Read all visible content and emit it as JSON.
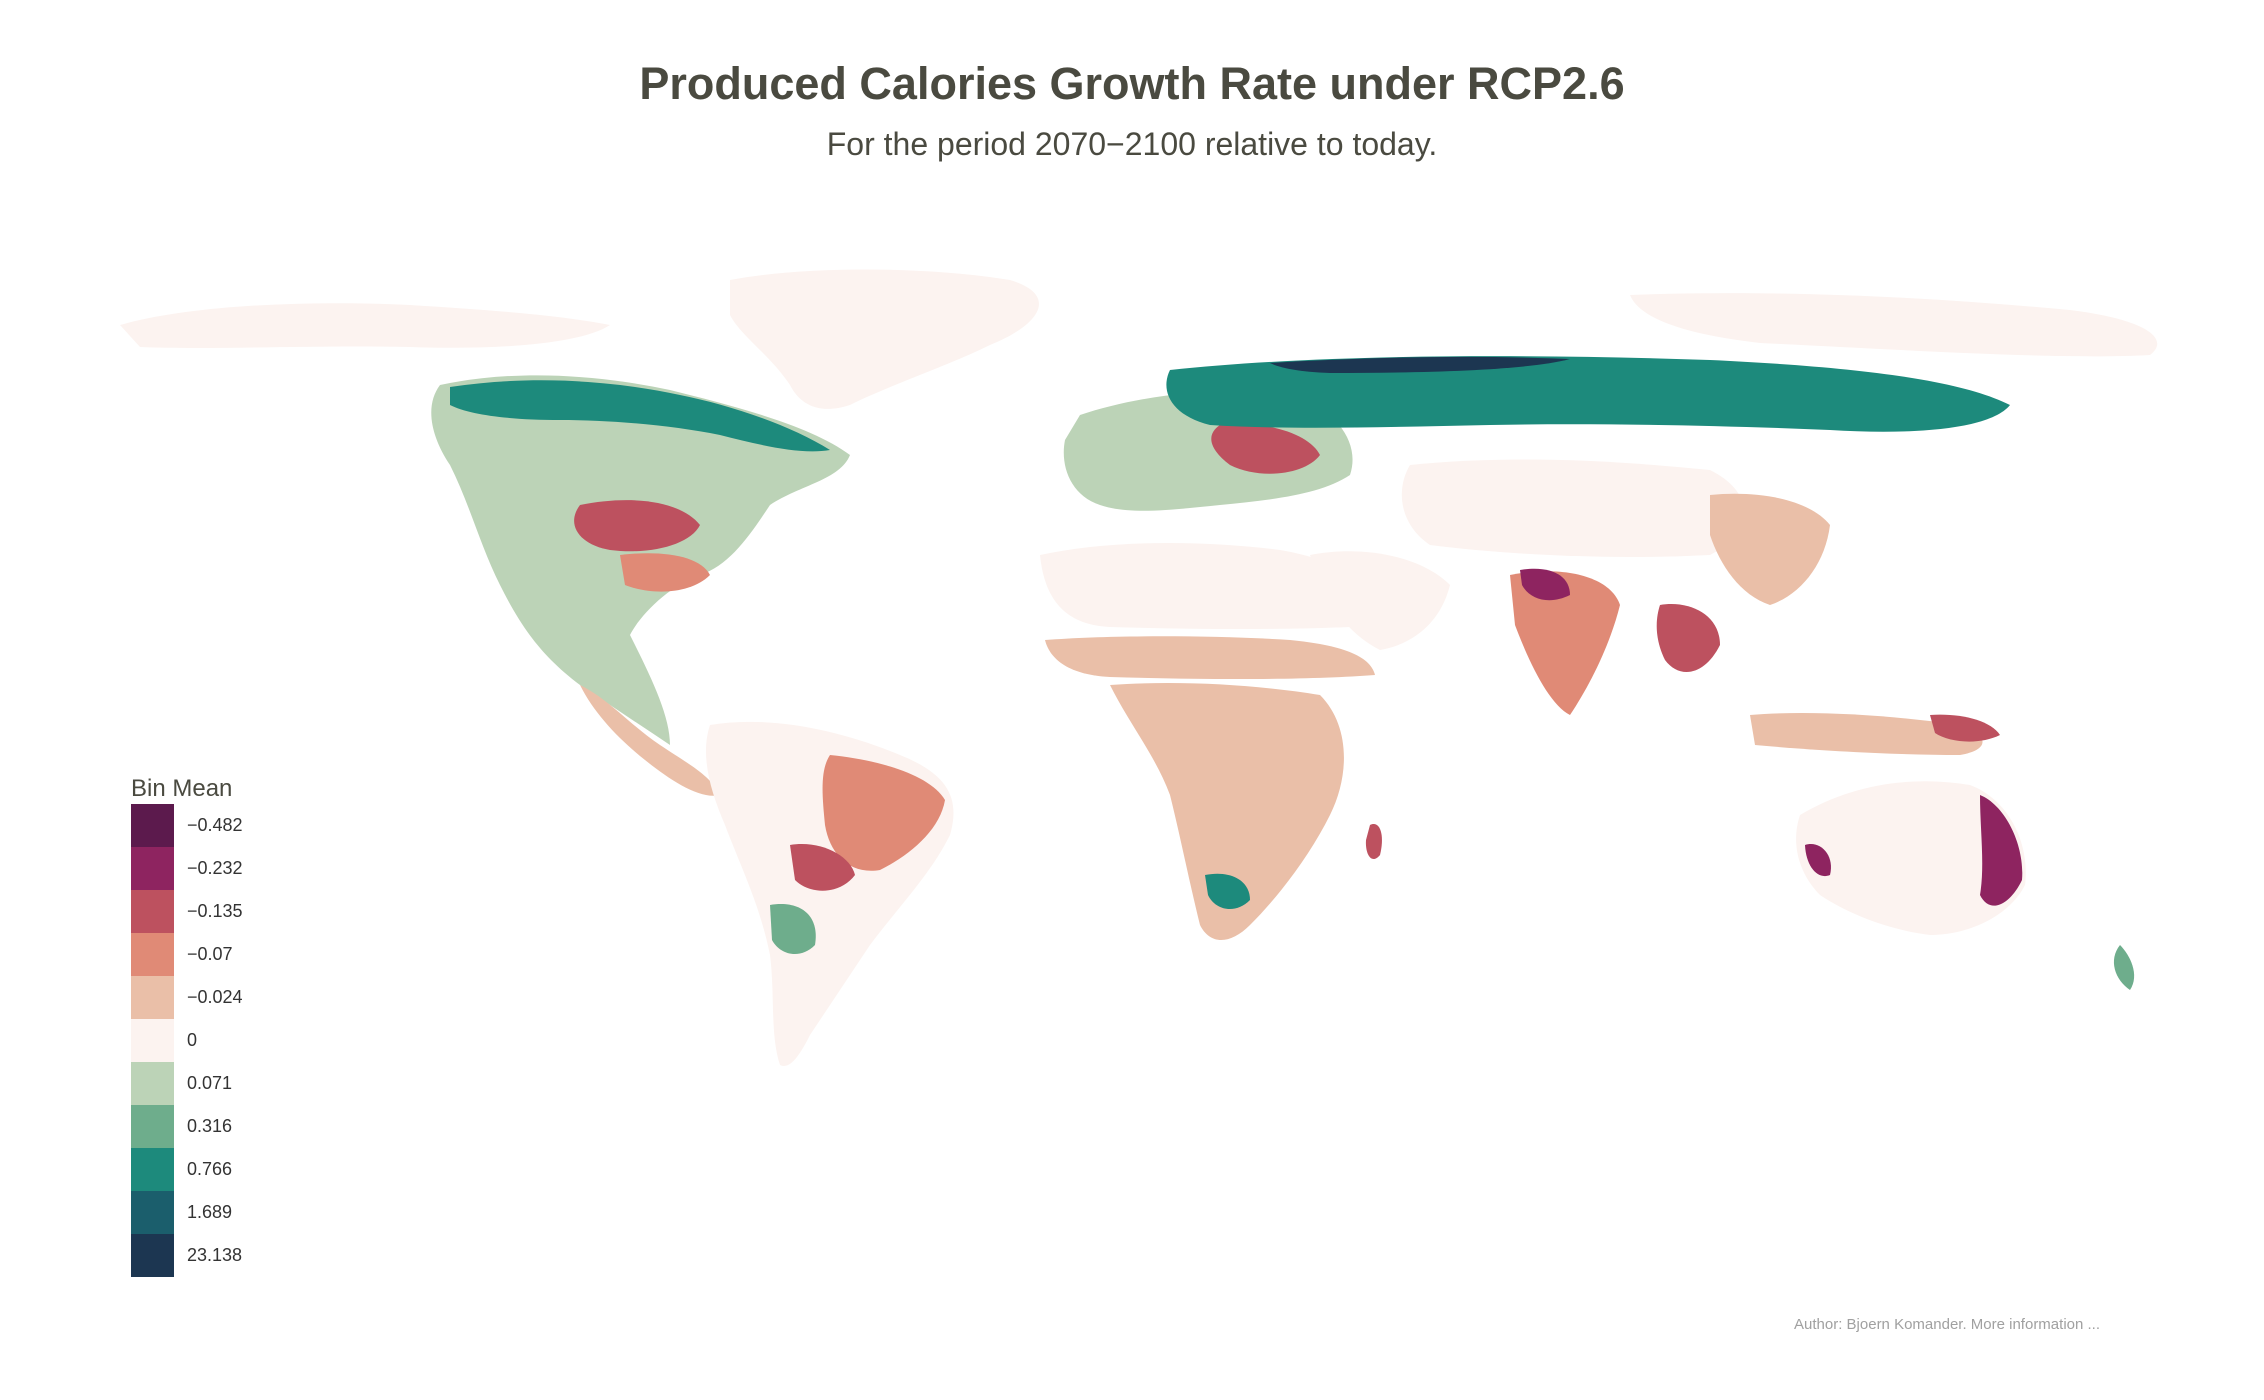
{
  "title": "Produced Calories Growth Rate under RCP2.6",
  "subtitle": "For the period 2070−2100 relative to today.",
  "legend": {
    "title": "Bin Mean",
    "bins": [
      {
        "label": "−0.482",
        "color": "#5c1a4d"
      },
      {
        "label": "−0.232",
        "color": "#8e2460"
      },
      {
        "label": "−0.135",
        "color": "#bd515f"
      },
      {
        "label": "−0.07",
        "color": "#e08a76"
      },
      {
        "label": "−0.024",
        "color": "#eabfa8"
      },
      {
        "label": "0",
        "color": "#fcf3f0"
      },
      {
        "label": "0.071",
        "color": "#bcd3b7"
      },
      {
        "label": "0.316",
        "color": "#6ead8c"
      },
      {
        "label": "0.766",
        "color": "#1d8a7c"
      },
      {
        "label": "1.689",
        "color": "#1b5e6c"
      },
      {
        "label": "23.138",
        "color": "#1c3651"
      }
    ]
  },
  "credit": "Author: Bjoern Komander. More information ..."
}
